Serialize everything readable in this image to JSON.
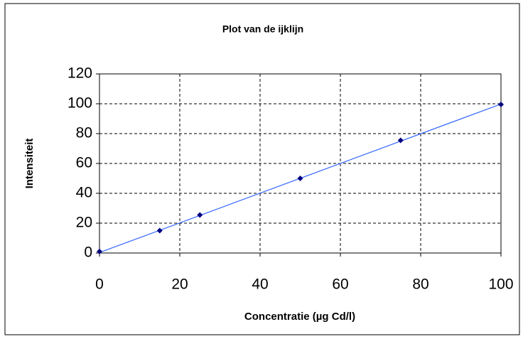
{
  "chart_data": {
    "type": "scatter",
    "title": "Plot van de ijklijn",
    "x_label": "Concentratie (µg Cd/l)",
    "y_label": "Intensiteit",
    "x": [
      0,
      15,
      25,
      50,
      75,
      100
    ],
    "values": [
      1,
      15,
      25.5,
      50,
      75.5,
      99.5
    ],
    "color": "#000080",
    "trendline": {
      "x": [
        0,
        100
      ],
      "values": [
        0.3,
        99.8
      ],
      "color": "#3366ff"
    },
    "xlim": [
      0,
      100
    ],
    "xticks": [
      0,
      20,
      40,
      60,
      80,
      100
    ],
    "ylim": [
      0,
      120
    ],
    "yticks": [
      0,
      20,
      40,
      60,
      80,
      100,
      120
    ],
    "grid": true
  }
}
